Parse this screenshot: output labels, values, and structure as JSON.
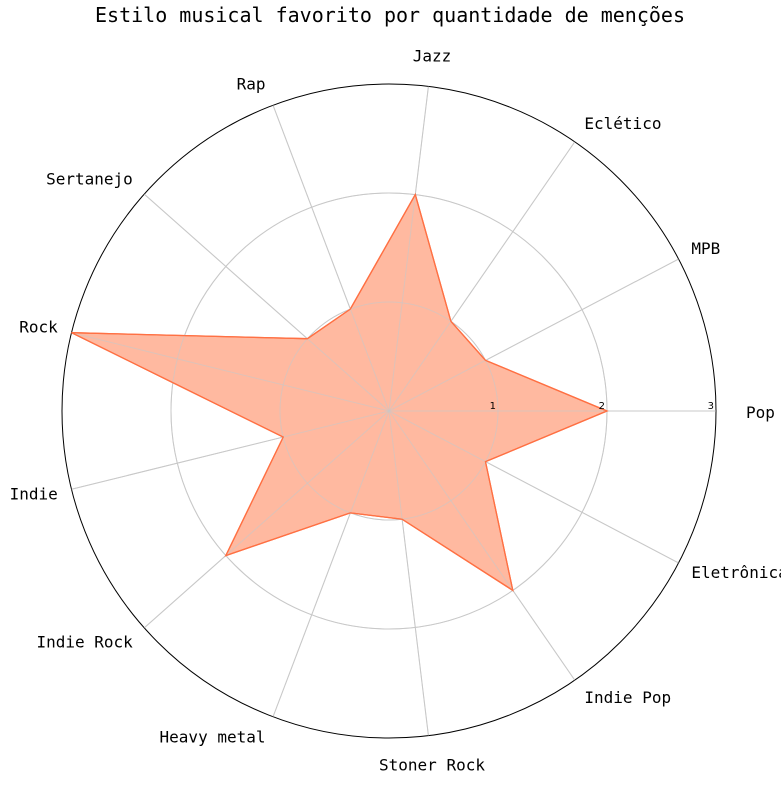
{
  "chart_data": {
    "type": "radar",
    "title": "Estilo musical favorito por quantidade de menções",
    "categories": [
      "Pop",
      "MPB",
      "Eclético",
      "Jazz",
      "Rap",
      "Sertanejo",
      "Rock",
      "Indie",
      "Indie Rock",
      "Heavy metal",
      "Stoner Rock",
      "Indie Pop",
      "Eletrônica"
    ],
    "values": [
      2,
      1,
      1,
      2,
      1,
      1,
      3,
      1,
      2,
      1,
      1,
      2,
      1
    ],
    "rlim": [
      0,
      3
    ],
    "rticks": [
      "1",
      "2",
      "3"
    ],
    "grid": true,
    "colors": {
      "fill": "#ffb9a0",
      "line": "#ff7043",
      "grid": "#c8c8c8",
      "frame": "#000000"
    }
  }
}
